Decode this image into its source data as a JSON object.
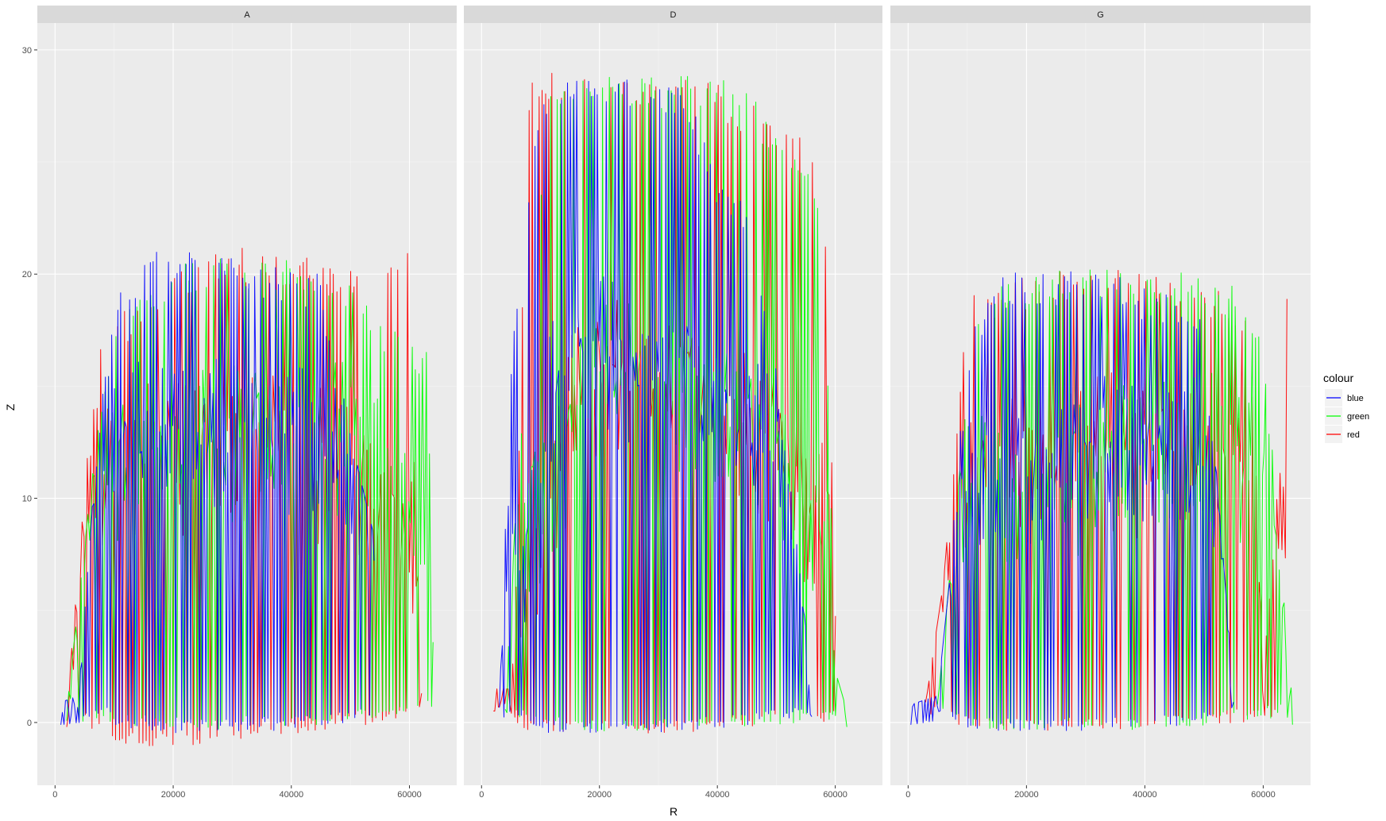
{
  "chart_data": {
    "type": "line",
    "title": "",
    "xlabel": "R",
    "ylabel": "Z",
    "xlim": [
      -3000,
      68000
    ],
    "ylim": [
      -2.8,
      31.2
    ],
    "x_ticks": [
      0,
      20000,
      40000,
      60000
    ],
    "y_ticks": [
      0,
      10,
      20,
      30
    ],
    "grid": true,
    "facets": [
      "A",
      "D",
      "G"
    ],
    "legend": {
      "title": "colour",
      "position": "right",
      "entries": [
        {
          "label": "blue",
          "color": "#0000ff"
        },
        {
          "label": "green",
          "color": "#00ff00"
        },
        {
          "label": "red",
          "color": "#ff0000"
        }
      ]
    },
    "panels": [
      {
        "facet": "A",
        "series": [
          {
            "name": "blue",
            "color": "#0000ff",
            "x_start": 1000,
            "x_end": 54000,
            "envelope": {
              "x": [
                1000,
                4000,
                8000,
                11000,
                15000,
                25000,
                35000,
                45000,
                50000,
                54000
              ],
              "top": [
                0.6,
                0.9,
                15.5,
                19.5,
                21.0,
                21.0,
                20.5,
                20.0,
                12.5,
                8.0
              ],
              "bottom": [
                0.2,
                0.3,
                0.2,
                -0.3,
                -0.5,
                -0.5,
                -0.4,
                -0.2,
                0.0,
                0.2
              ]
            },
            "band": {
              "x": [
                8000,
                12000,
                20000,
                30000,
                40000,
                45000
              ],
              "center": [
                12.5,
                13.0,
                13.3,
                13.0,
                13.3,
                12.5
              ]
            }
          },
          {
            "name": "green",
            "color": "#00ff00",
            "x_start": 2000,
            "x_end": 64000,
            "envelope": {
              "x": [
                2000,
                6000,
                10000,
                20000,
                30000,
                40000,
                45000,
                50000,
                55000,
                60000,
                63000,
                64000
              ],
              "top": [
                0.3,
                10.0,
                18.5,
                20.5,
                21.0,
                20.8,
                20.0,
                20.0,
                18.0,
                17.0,
                17.0,
                5.0
              ],
              "bottom": [
                0.1,
                0.0,
                -0.2,
                -0.3,
                -0.3,
                -0.3,
                -0.1,
                0.0,
                0.2,
                0.3,
                0.4,
                0.5
              ]
            },
            "band": {
              "x": [
                10000,
                30000,
                45000,
                50000,
                55000,
                60000
              ],
              "center": [
                12.0,
                13.0,
                13.0,
                13.5,
                12.0,
                10.0
              ]
            }
          },
          {
            "name": "red",
            "color": "#ff0000",
            "x_start": 2000,
            "x_end": 62000,
            "envelope": {
              "x": [
                2000,
                5000,
                7000,
                10000,
                20000,
                30000,
                40000,
                50000,
                55000,
                60000,
                62000
              ],
              "top": [
                0.3,
                10.0,
                16.5,
                18.0,
                20.5,
                21.2,
                21.0,
                20.5,
                20.5,
                21.0,
                1.0
              ],
              "bottom": [
                0.1,
                0.0,
                -0.5,
                -1.0,
                -1.1,
                -0.8,
                -0.5,
                -0.2,
                0.0,
                0.2,
                0.3
              ]
            },
            "band": {
              "x": [
                7000,
                20000,
                40000,
                50000,
                60000
              ],
              "center": [
                11.0,
                12.5,
                12.5,
                11.0,
                8.0
              ]
            }
          }
        ]
      },
      {
        "facet": "D",
        "series": [
          {
            "name": "blue",
            "color": "#0000ff",
            "x_start": 3000,
            "x_end": 56000,
            "envelope": {
              "x": [
                3000,
                5000,
                7000,
                10000,
                15000,
                25000,
                35000,
                40000,
                45000,
                50000,
                56000
              ],
              "top": [
                0.2,
                16.0,
                22.0,
                28.5,
                29.0,
                28.8,
                28.5,
                24.0,
                23.5,
                16.0,
                1.5
              ],
              "bottom": [
                0.1,
                0.0,
                -0.3,
                -0.5,
                -0.5,
                -0.5,
                -0.4,
                -0.3,
                -0.2,
                0.0,
                0.3
              ]
            },
            "band": {
              "x": [
                8000,
                12000,
                16000,
                25000,
                35000,
                45000,
                50000
              ],
              "center": [
                8.0,
                15.0,
                17.0,
                16.5,
                15.5,
                13.5,
                12.0
              ]
            }
          },
          {
            "name": "green",
            "color": "#00ff00",
            "x_start": 4000,
            "x_end": 62000,
            "envelope": {
              "x": [
                4000,
                8000,
                12000,
                20000,
                30000,
                40000,
                45000,
                50000,
                55000,
                58000,
                60000,
                62000
              ],
              "top": [
                0.2,
                20.0,
                29.0,
                29.0,
                28.8,
                29.0,
                28.5,
                26.0,
                25.5,
                24.0,
                2.0,
                0.2
              ],
              "bottom": [
                0.1,
                0.0,
                -0.3,
                -0.4,
                -0.4,
                -0.4,
                -0.3,
                -0.2,
                -0.1,
                0.0,
                0.1,
                0.1
              ]
            },
            "band": {
              "x": [
                10000,
                20000,
                35000,
                45000,
                55000,
                58000
              ],
              "center": [
                10.0,
                16.0,
                15.0,
                14.0,
                10.0,
                8.0
              ]
            }
          },
          {
            "name": "red",
            "color": "#ff0000",
            "x_start": 2000,
            "x_end": 60000,
            "envelope": {
              "x": [
                2000,
                5000,
                8000,
                12000,
                20000,
                30000,
                40000,
                50000,
                55000,
                58000,
                60000
              ],
              "top": [
                1.2,
                1.2,
                28.5,
                29.2,
                29.0,
                28.8,
                28.5,
                27.0,
                26.0,
                26.0,
                6.0
              ],
              "bottom": [
                0.5,
                0.2,
                -0.4,
                -0.5,
                -0.5,
                -0.5,
                -0.4,
                -0.2,
                0.0,
                0.0,
                0.1
              ]
            },
            "band": {
              "x": [
                7000,
                10000,
                15000,
                25000,
                35000,
                45000,
                55000
              ],
              "center": [
                3.5,
                7.0,
                15.0,
                16.0,
                15.0,
                14.0,
                10.0
              ]
            }
          }
        ]
      },
      {
        "facet": "G",
        "series": [
          {
            "name": "blue",
            "color": "#0000ff",
            "x_start": 500,
            "x_end": 55000,
            "envelope": {
              "x": [
                500,
                5000,
                7000,
                10000,
                15000,
                25000,
                35000,
                45000,
                50000,
                55000
              ],
              "top": [
                0.5,
                0.9,
                6.0,
                17.0,
                20.0,
                20.3,
                20.0,
                19.0,
                18.0,
                1.0
              ],
              "bottom": [
                0.2,
                0.4,
                0.0,
                -0.3,
                -0.4,
                -0.4,
                -0.3,
                -0.2,
                0.0,
                0.6
              ]
            },
            "band": {
              "x": [
                8000,
                15000,
                25000,
                35000,
                45000,
                50000
              ],
              "center": [
                11.0,
                12.0,
                11.5,
                13.0,
                12.0,
                11.0
              ]
            }
          },
          {
            "name": "green",
            "color": "#00ff00",
            "x_start": 5000,
            "x_end": 65000,
            "envelope": {
              "x": [
                5000,
                8000,
                12000,
                20000,
                30000,
                40000,
                50000,
                55000,
                60000,
                62000,
                65000
              ],
              "top": [
                0.5,
                9.0,
                19.5,
                20.0,
                20.3,
                20.4,
                20.0,
                19.5,
                18.0,
                10.0,
                0.3
              ],
              "bottom": [
                0.3,
                0.0,
                -0.3,
                -0.4,
                -0.4,
                -0.3,
                -0.2,
                0.0,
                0.0,
                0.3,
                0.2
              ]
            },
            "band": {
              "x": [
                10000,
                30000,
                45000,
                50000,
                55000,
                60000
              ],
              "center": [
                11.0,
                11.5,
                12.5,
                13.0,
                12.0,
                10.5
              ]
            }
          },
          {
            "name": "red",
            "color": "#ff0000",
            "x_start": 3000,
            "x_end": 64000,
            "envelope": {
              "x": [
                3000,
                6000,
                10000,
                20000,
                30000,
                40000,
                50000,
                55000,
                58000,
                60000,
                62000,
                64000
              ],
              "top": [
                0.6,
                6.0,
                19.0,
                20.0,
                20.2,
                20.2,
                19.5,
                19.0,
                17.5,
                2.0,
                8.0,
                19.0
              ],
              "bottom": [
                0.3,
                0.0,
                -0.3,
                -0.4,
                -0.4,
                -0.3,
                -0.2,
                0.0,
                0.0,
                0.2,
                0.2,
                0.3
              ]
            },
            "band": {
              "x": [
                8000,
                20000,
                35000,
                45000,
                55000,
                58000
              ],
              "center": [
                10.0,
                12.0,
                12.5,
                12.0,
                11.0,
                10.0
              ]
            }
          }
        ]
      }
    ]
  }
}
